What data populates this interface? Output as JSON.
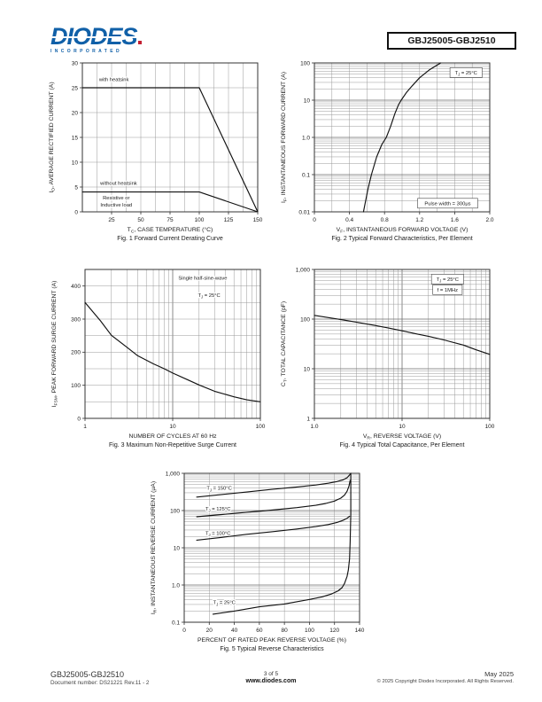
{
  "header": {
    "logo_text": "DIODES",
    "logo_sub": "INCORPORATED",
    "part_number": "GBJ25005-GBJ2510"
  },
  "footer": {
    "part_number": "GBJ25005-GBJ2510",
    "document_number": "Document number: DS21221 Rev.11 - 2",
    "page_info": "3 of 5",
    "website": "www.diodes.com",
    "date": "May 2025",
    "copyright": "© 2025 Copyright Diodes Incorporated. All Rights Reserved."
  },
  "colors": {
    "logo_blue": "#1060a8",
    "logo_red": "#c32032",
    "curve": "#111111",
    "grid": "#999999"
  },
  "chart_data": [
    {
      "id": "fig1",
      "type": "line",
      "caption": "Fig. 1  Forward Current Derating Curve",
      "x": {
        "label": "T~C~, CASE TEMPERATURE (°C)",
        "scale": "linear",
        "min": 0,
        "max": 150,
        "grid_step": 12.5,
        "ticks": [
          {
            "v": 25,
            "t": "25"
          },
          {
            "v": 50,
            "t": "50"
          },
          {
            "v": 75,
            "t": "75"
          },
          {
            "v": 100,
            "t": "100"
          },
          {
            "v": 125,
            "t": "125"
          },
          {
            "v": 150,
            "t": "150"
          }
        ]
      },
      "y": {
        "label": "I~O~, AVERAGE RECTIFIED CURRENT (A)",
        "scale": "linear",
        "min": 0,
        "max": 30,
        "grid_step": 5,
        "ticks": [
          {
            "v": 0,
            "t": "0"
          },
          {
            "v": 5,
            "t": "5"
          },
          {
            "v": 10,
            "t": "10"
          },
          {
            "v": 15,
            "t": "15"
          },
          {
            "v": 20,
            "t": "20"
          },
          {
            "v": 25,
            "t": "25"
          },
          {
            "v": 30,
            "t": "30"
          }
        ]
      },
      "series": [
        {
          "name": "with heatsink",
          "points": [
            [
              0,
              25
            ],
            [
              100,
              25
            ],
            [
              150,
              0
            ]
          ]
        },
        {
          "name": "without heatsink",
          "points": [
            [
              0,
              4
            ],
            [
              100,
              4
            ],
            [
              150,
              0
            ]
          ]
        }
      ],
      "annotations": [
        {
          "text": "with heatsink",
          "x": 27,
          "y": 26.7,
          "box": false
        },
        {
          "text": "without heatsink",
          "x": 31,
          "y": 5.8,
          "box": false
        },
        {
          "text": "Resistive or",
          "x": 29,
          "y": 2.9,
          "box": false
        },
        {
          "text": "Inductive load",
          "x": 29,
          "y": 1.4,
          "box": false
        }
      ]
    },
    {
      "id": "fig2",
      "type": "line",
      "caption": "Fig. 2  Typical Forward Characteristics, Per Element",
      "x": {
        "label": "V~F~, INSTANTANEOUS FORWARD VOLTAGE (V)",
        "scale": "linear",
        "min": 0,
        "max": 2,
        "grid_step": 0.2,
        "ticks": [
          {
            "v": 0,
            "t": "0"
          },
          {
            "v": 0.4,
            "t": "0.4"
          },
          {
            "v": 0.8,
            "t": "0.8"
          },
          {
            "v": 1.2,
            "t": "1.2"
          },
          {
            "v": 1.6,
            "t": "1.6"
          },
          {
            "v": 2,
            "t": "2.0"
          }
        ]
      },
      "y": {
        "label": "I~F~, INSTANTANEOUS FORWARD CURRENT (A)",
        "scale": "log",
        "min": 0.01,
        "max": 100,
        "ticks": [
          {
            "v": 0.01,
            "t": "0.01"
          },
          {
            "v": 0.1,
            "t": "0.1"
          },
          {
            "v": 1,
            "t": "1.0"
          },
          {
            "v": 10,
            "t": "10"
          },
          {
            "v": 100,
            "t": "100"
          }
        ]
      },
      "series": [
        {
          "name": "forward characteristic",
          "points": [
            [
              0.56,
              0.01
            ],
            [
              0.61,
              0.04
            ],
            [
              0.65,
              0.1
            ],
            [
              0.71,
              0.3
            ],
            [
              0.77,
              0.65
            ],
            [
              0.82,
              1.0
            ],
            [
              0.87,
              2.0
            ],
            [
              0.92,
              4.5
            ],
            [
              0.96,
              7.5
            ],
            [
              0.99,
              10
            ],
            [
              1.05,
              16
            ],
            [
              1.12,
              25
            ],
            [
              1.2,
              40
            ],
            [
              1.31,
              65
            ],
            [
              1.44,
              100
            ]
          ]
        }
      ],
      "annotations": [
        {
          "text": "T~J~ = 25°C",
          "x": 1.73,
          "y": 55,
          "box": true
        },
        {
          "text": "Pulse width = 300μs",
          "x": 1.52,
          "y": 0.017,
          "box": true
        }
      ]
    },
    {
      "id": "fig3",
      "type": "line",
      "caption": "Fig. 3  Maximum Non-Repetitive Surge Current",
      "x": {
        "label": "NUMBER OF CYCLES AT 60 Hz",
        "scale": "log",
        "min": 1,
        "max": 100,
        "ticks": [
          {
            "v": 1,
            "t": "1"
          },
          {
            "v": 10,
            "t": "10"
          },
          {
            "v": 100,
            "t": "100"
          }
        ]
      },
      "y": {
        "label": "I~FSM~, PEAK FORWARD SURGE CURRENT (A)",
        "scale": "linear",
        "min": 0,
        "max": 450,
        "grid_step": 50,
        "ticks": [
          {
            "v": 0,
            "t": "0"
          },
          {
            "v": 100,
            "t": "100"
          },
          {
            "v": 200,
            "t": "200"
          },
          {
            "v": 300,
            "t": "300"
          },
          {
            "v": 400,
            "t": "400"
          }
        ]
      },
      "series": [
        {
          "name": "surge current",
          "points": [
            [
              1,
              350
            ],
            [
              1.5,
              295
            ],
            [
              2,
              251
            ],
            [
              3,
              215
            ],
            [
              4,
              189
            ],
            [
              6,
              165
            ],
            [
              8,
              150
            ],
            [
              10,
              137
            ],
            [
              15,
              116
            ],
            [
              20,
              101
            ],
            [
              30,
              82
            ],
            [
              50,
              65
            ],
            [
              70,
              56
            ],
            [
              100,
              50
            ]
          ]
        }
      ],
      "annotations": [
        {
          "text": "Single half-sine-wave",
          "x": 22,
          "y": 424,
          "box": false
        },
        {
          "text": "T~J~ = 25°C",
          "x": 26,
          "y": 372,
          "box": false
        }
      ]
    },
    {
      "id": "fig4",
      "type": "line",
      "caption": "Fig. 4  Typical Total Capacitance, Per Element",
      "x": {
        "label": "V~R~, REVERSE VOLTAGE (V)",
        "scale": "log",
        "min": 1,
        "max": 100,
        "ticks": [
          {
            "v": 1,
            "t": "1.0"
          },
          {
            "v": 10,
            "t": "10"
          },
          {
            "v": 100,
            "t": "100"
          }
        ]
      },
      "y": {
        "label": "C~T~, TOTAL CAPACITANCE (pF)",
        "scale": "log",
        "min": 1,
        "max": 1000,
        "ticks": [
          {
            "v": 1,
            "t": "1"
          },
          {
            "v": 10,
            "t": "10"
          },
          {
            "v": 100,
            "t": "100"
          },
          {
            "v": 1000,
            "t": "1,000"
          }
        ]
      },
      "series": [
        {
          "name": "total capacitance",
          "points": [
            [
              1,
              119
            ],
            [
              1.5,
              106
            ],
            [
              2,
              98
            ],
            [
              3,
              87
            ],
            [
              5,
              74
            ],
            [
              7,
              66
            ],
            [
              10,
              58
            ],
            [
              15,
              50
            ],
            [
              20,
              45
            ],
            [
              30,
              38
            ],
            [
              50,
              30
            ],
            [
              70,
              24
            ],
            [
              100,
              19.5
            ]
          ]
        }
      ],
      "annotations": [
        {
          "text": "T~J~ = 25°C",
          "x": 33,
          "y": 640,
          "box": true
        },
        {
          "text": "f = 1MHz",
          "x": 33,
          "y": 390,
          "box": true
        }
      ]
    },
    {
      "id": "fig5",
      "type": "line",
      "caption": "Fig. 5  Typical Reverse Characteristics",
      "x": {
        "label": "PERCENT OF RATED PEAK REVERSE VOLTAGE (%)",
        "scale": "linear",
        "min": 0,
        "max": 140,
        "grid_step": 20,
        "ticks": [
          {
            "v": 0,
            "t": "0"
          },
          {
            "v": 20,
            "t": "20"
          },
          {
            "v": 40,
            "t": "40"
          },
          {
            "v": 60,
            "t": "60"
          },
          {
            "v": 80,
            "t": "80"
          },
          {
            "v": 100,
            "t": "100"
          },
          {
            "v": 120,
            "t": "120"
          },
          {
            "v": 140,
            "t": "140"
          }
        ]
      },
      "y": {
        "label": "I~R~, INSTANTANEOUS REVERSE CURRENT (μA)",
        "scale": "log",
        "min": 0.1,
        "max": 1000,
        "ticks": [
          {
            "v": 0.1,
            "t": "0.1"
          },
          {
            "v": 1,
            "t": "1.0"
          },
          {
            "v": 10,
            "t": "10"
          },
          {
            "v": 100,
            "t": "100"
          },
          {
            "v": 1000,
            "t": "1,000"
          }
        ]
      },
      "series": [
        {
          "name": "TJ 150C",
          "points": [
            [
              10,
              230
            ],
            [
              30,
              270
            ],
            [
              50,
              315
            ],
            [
              70,
              370
            ],
            [
              90,
              430
            ],
            [
              105,
              485
            ],
            [
              115,
              540
            ],
            [
              122,
              600
            ],
            [
              127,
              670
            ],
            [
              130,
              760
            ],
            [
              132,
              900
            ],
            [
              133,
              1000
            ]
          ]
        },
        {
          "name": "TJ 125C",
          "points": [
            [
              10,
              68
            ],
            [
              30,
              78
            ],
            [
              50,
              90
            ],
            [
              70,
              103
            ],
            [
              90,
              120
            ],
            [
              105,
              138
            ],
            [
              113,
              155
            ],
            [
              120,
              180
            ],
            [
              125,
              215
            ],
            [
              128,
              260
            ],
            [
              130,
              330
            ],
            [
              131.5,
              450
            ],
            [
              132.5,
              650
            ]
          ]
        },
        {
          "name": "TJ 100C",
          "points": [
            [
              10,
              16
            ],
            [
              30,
              19
            ],
            [
              50,
              23
            ],
            [
              70,
              27
            ],
            [
              90,
              32
            ],
            [
              105,
              37
            ],
            [
              115,
              42
            ],
            [
              122,
              48
            ],
            [
              127,
              55
            ],
            [
              130,
              62
            ],
            [
              132,
              70
            ]
          ]
        },
        {
          "name": "TJ 25C",
          "points": [
            [
              23,
              0.165
            ],
            [
              40,
              0.2
            ],
            [
              60,
              0.26
            ],
            [
              80,
              0.31
            ],
            [
              100,
              0.41
            ],
            [
              110,
              0.48
            ],
            [
              118,
              0.58
            ],
            [
              123,
              0.7
            ],
            [
              126,
              0.85
            ],
            [
              128,
              1.1
            ],
            [
              130,
              1.7
            ],
            [
              131,
              2.5
            ],
            [
              132,
              5
            ],
            [
              132.5,
              15
            ],
            [
              133,
              80
            ],
            [
              133,
              1000
            ]
          ]
        }
      ],
      "annotations": [
        {
          "text": "T~J~ = 150°C",
          "x": 28,
          "y": 400,
          "box": false
        },
        {
          "text": "T~J~ = 125°C",
          "x": 27,
          "y": 112,
          "box": false
        },
        {
          "text": "T~J~ = 100°C",
          "x": 27,
          "y": 25,
          "box": false
        },
        {
          "text": "T~J~ = 25°C",
          "x": 32,
          "y": 0.34,
          "box": false
        }
      ]
    }
  ]
}
